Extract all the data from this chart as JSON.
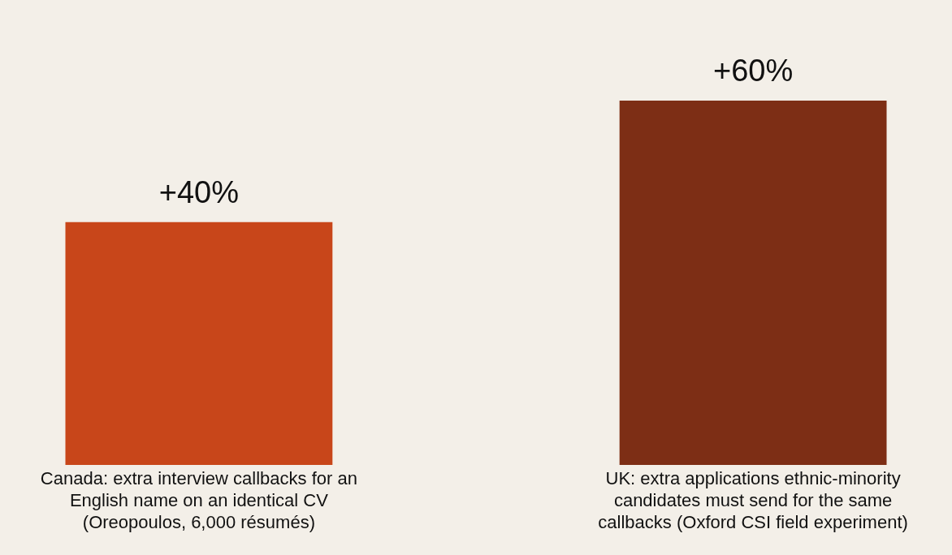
{
  "chart_data": {
    "type": "bar",
    "categories": [
      "Canada: extra interview callbacks for an\nEnglish name on an identical CV\n(Oreopoulos, 6,000 résumés)",
      "UK: extra applications ethnic-minority\ncandidates must send for the same\ncallbacks (Oxford CSI field experiment)"
    ],
    "values": [
      40,
      60
    ],
    "colors": [
      "#c8461a",
      "#7d2e15"
    ],
    "value_labels": [
      "+40%",
      "+60%"
    ]
  }
}
